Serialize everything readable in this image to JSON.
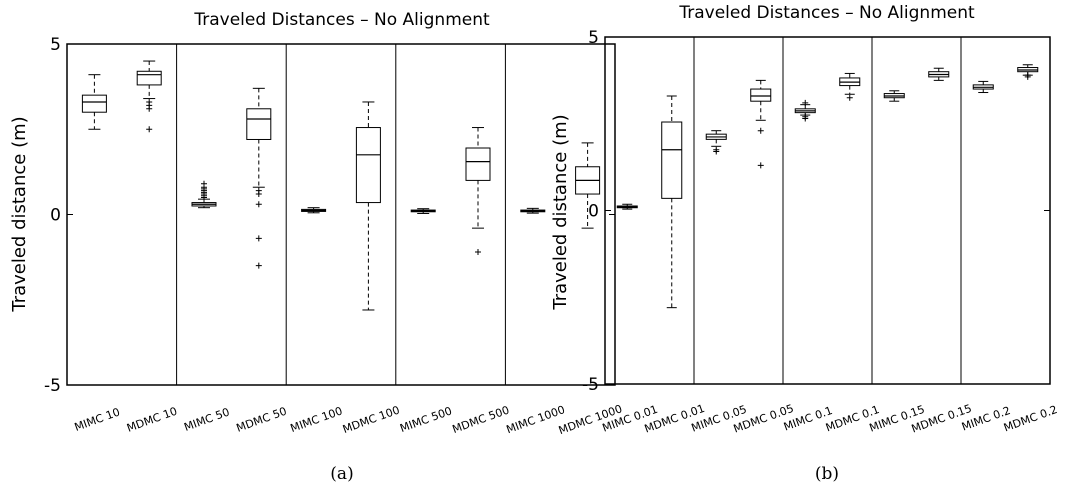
{
  "chart_data": [
    {
      "type": "box",
      "title": "Traveled Distances – No Alignment",
      "ylabel": "Traveled distance (m)",
      "ylim": [
        -5,
        5
      ],
      "yticks": [
        5,
        0,
        -5
      ],
      "caption": "(a)",
      "group_size": 2,
      "categories": [
        "MIMC 10",
        "MDMC 10",
        "MIMC 50",
        "MDMC 50",
        "MIMC 100",
        "MDMC 100",
        "MIMC 500",
        "MDMC 500",
        "MIMC 1000",
        "MDMC 1000"
      ],
      "boxes": [
        {
          "whisker_low": 2.5,
          "q1": 3.0,
          "median": 3.3,
          "q3": 3.5,
          "whisker_high": 4.1,
          "outliers": []
        },
        {
          "whisker_low": 3.4,
          "q1": 3.8,
          "median": 4.1,
          "q3": 4.2,
          "whisker_high": 4.5,
          "outliers": [
            3.3,
            3.2,
            3.1,
            2.5
          ]
        },
        {
          "whisker_low": 0.2,
          "q1": 0.25,
          "median": 0.3,
          "q3": 0.35,
          "whisker_high": 0.45,
          "outliers": [
            0.5,
            0.55,
            0.6,
            0.65,
            0.7,
            0.75,
            0.8,
            0.9
          ]
        },
        {
          "whisker_low": 0.8,
          "q1": 2.2,
          "median": 2.8,
          "q3": 3.1,
          "whisker_high": 3.7,
          "outliers": [
            0.7,
            0.6,
            0.3,
            -0.7,
            -1.5
          ]
        },
        {
          "whisker_low": 0.05,
          "q1": 0.09,
          "median": 0.12,
          "q3": 0.15,
          "whisker_high": 0.2,
          "outliers": []
        },
        {
          "whisker_low": -2.8,
          "q1": 0.35,
          "median": 1.75,
          "q3": 2.55,
          "whisker_high": 3.3,
          "outliers": []
        },
        {
          "whisker_low": 0.03,
          "q1": 0.08,
          "median": 0.1,
          "q3": 0.13,
          "whisker_high": 0.17,
          "outliers": []
        },
        {
          "whisker_low": -0.4,
          "q1": 1.0,
          "median": 1.55,
          "q3": 1.95,
          "whisker_high": 2.55,
          "outliers": [
            -1.1
          ]
        },
        {
          "whisker_low": 0.04,
          "q1": 0.08,
          "median": 0.1,
          "q3": 0.13,
          "whisker_high": 0.18,
          "outliers": []
        },
        {
          "whisker_low": -0.4,
          "q1": 0.6,
          "median": 1.0,
          "q3": 1.4,
          "whisker_high": 2.1,
          "outliers": []
        }
      ]
    },
    {
      "type": "box",
      "title": "Traveled Distances – No Alignment",
      "ylabel": "Traveled distance (m)",
      "ylim": [
        -5,
        5
      ],
      "yticks": [
        5,
        0,
        -5
      ],
      "caption": "(b)",
      "group_size": 2,
      "categories": [
        "MIMC 0.01",
        "MDMC 0.01",
        "MIMC 0.05",
        "MDMC 0.05",
        "MIMC 0.1",
        "MDMC 0.1",
        "MIMC 0.15",
        "MDMC 0.15",
        "MIMC 0.2",
        "MDMC 0.2"
      ],
      "boxes": [
        {
          "whisker_low": 0.04,
          "q1": 0.08,
          "median": 0.1,
          "q3": 0.13,
          "whisker_high": 0.18,
          "outliers": []
        },
        {
          "whisker_low": -2.8,
          "q1": 0.35,
          "median": 1.75,
          "q3": 2.55,
          "whisker_high": 3.3,
          "outliers": []
        },
        {
          "whisker_low": 1.85,
          "q1": 2.05,
          "median": 2.12,
          "q3": 2.2,
          "whisker_high": 2.3,
          "outliers": [
            1.75,
            1.7
          ]
        },
        {
          "whisker_low": 2.6,
          "q1": 3.15,
          "median": 3.3,
          "q3": 3.5,
          "whisker_high": 3.75,
          "outliers": [
            2.3,
            1.3
          ]
        },
        {
          "whisker_low": 2.75,
          "q1": 2.82,
          "median": 2.87,
          "q3": 2.93,
          "whisker_high": 3.05,
          "outliers": [
            2.65,
            2.7,
            3.1
          ]
        },
        {
          "whisker_low": 3.35,
          "q1": 3.6,
          "median": 3.7,
          "q3": 3.82,
          "whisker_high": 3.95,
          "outliers": [
            3.25
          ]
        },
        {
          "whisker_low": 3.15,
          "q1": 3.25,
          "median": 3.3,
          "q3": 3.37,
          "whisker_high": 3.45,
          "outliers": []
        },
        {
          "whisker_low": 3.75,
          "q1": 3.85,
          "median": 3.92,
          "q3": 4.0,
          "whisker_high": 4.1,
          "outliers": []
        },
        {
          "whisker_low": 3.4,
          "q1": 3.5,
          "median": 3.55,
          "q3": 3.62,
          "whisker_high": 3.72,
          "outliers": []
        },
        {
          "whisker_low": 3.9,
          "q1": 4.0,
          "median": 4.05,
          "q3": 4.12,
          "whisker_high": 4.2,
          "outliers": [
            3.85,
            3.9
          ]
        }
      ]
    }
  ]
}
